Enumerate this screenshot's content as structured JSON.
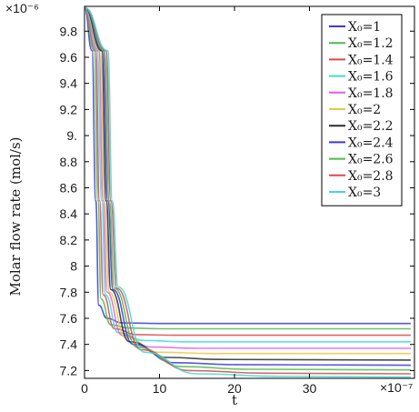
{
  "chart_data": {
    "type": "line",
    "xlabel": "t",
    "ylabel": "Molar flow rate (mol/s)",
    "x_multiplier": "×10⁻⁷",
    "y_multiplier": "×10⁻⁶",
    "xlim": [
      0,
      44
    ],
    "ylim": [
      7.14,
      9.99
    ],
    "x_ticks": [
      0,
      10,
      20,
      30
    ],
    "x_tick_labels": [
      "0",
      "10",
      "20",
      "30"
    ],
    "y_ticks": [
      7.2,
      7.4,
      7.6,
      7.8,
      8.0,
      8.2,
      8.4,
      8.6,
      8.8,
      9.0,
      9.2,
      9.4,
      9.6,
      9.8
    ],
    "y_tick_labels": [
      "7.2",
      "7.4",
      "7.6",
      "7.8",
      "8",
      "8.2",
      "8.4",
      "8.6",
      "8.8",
      "9.",
      "9.2",
      "9.4",
      "9.6",
      "9.8"
    ],
    "grid": false,
    "legend_position": "top-right",
    "series": [
      {
        "name": "X₀=1",
        "color": "#3a3ad8",
        "values": [
          [
            0,
            9.98
          ],
          [
            1,
            9.65
          ],
          [
            1.5,
            8.5
          ],
          [
            1.9,
            7.7
          ],
          [
            3,
            7.6
          ],
          [
            5,
            7.565
          ],
          [
            10,
            7.56
          ],
          [
            43.5,
            7.56
          ]
        ]
      },
      {
        "name": "X₀=1.2",
        "color": "#50b850",
        "values": [
          [
            0,
            9.98
          ],
          [
            1.3,
            9.65
          ],
          [
            1.8,
            8.5
          ],
          [
            2.2,
            7.75
          ],
          [
            3.5,
            7.55
          ],
          [
            6,
            7.525
          ],
          [
            10,
            7.52
          ],
          [
            43.5,
            7.52
          ]
        ]
      },
      {
        "name": "X₀=1.4",
        "color": "#d84a4a",
        "values": [
          [
            0,
            9.98
          ],
          [
            1.5,
            9.65
          ],
          [
            2.0,
            8.5
          ],
          [
            2.5,
            7.78
          ],
          [
            4,
            7.52
          ],
          [
            7,
            7.475
          ],
          [
            12,
            7.47
          ],
          [
            43.5,
            7.47
          ]
        ]
      },
      {
        "name": "X₀=1.6",
        "color": "#3fd9d9",
        "values": [
          [
            0,
            9.98
          ],
          [
            1.7,
            9.65
          ],
          [
            2.3,
            8.5
          ],
          [
            2.8,
            7.78
          ],
          [
            4.5,
            7.49
          ],
          [
            8,
            7.43
          ],
          [
            13,
            7.42
          ],
          [
            43.5,
            7.42
          ]
        ]
      },
      {
        "name": "X₀=1.8",
        "color": "#e060e0",
        "values": [
          [
            0,
            9.98
          ],
          [
            1.9,
            9.65
          ],
          [
            2.5,
            8.5
          ],
          [
            3.0,
            7.8
          ],
          [
            5,
            7.47
          ],
          [
            9,
            7.38
          ],
          [
            15,
            7.37
          ],
          [
            43.5,
            7.37
          ]
        ]
      },
      {
        "name": "X₀=2",
        "color": "#e8c840",
        "values": [
          [
            0,
            9.98
          ],
          [
            2.1,
            9.65
          ],
          [
            2.7,
            8.5
          ],
          [
            3.3,
            7.8
          ],
          [
            5.5,
            7.45
          ],
          [
            10,
            7.34
          ],
          [
            17,
            7.33
          ],
          [
            43.5,
            7.33
          ]
        ]
      },
      {
        "name": "X₀=2.2",
        "color": "#2a2a2a",
        "values": [
          [
            0,
            9.98
          ],
          [
            2.3,
            9.65
          ],
          [
            2.9,
            8.5
          ],
          [
            3.5,
            7.82
          ],
          [
            6,
            7.42
          ],
          [
            11,
            7.3
          ],
          [
            18,
            7.285
          ],
          [
            43.5,
            7.28
          ]
        ]
      },
      {
        "name": "X₀=2.4",
        "color": "#3a3ad8",
        "values": [
          [
            0,
            9.98
          ],
          [
            2.5,
            9.65
          ],
          [
            3.1,
            8.5
          ],
          [
            3.8,
            7.82
          ],
          [
            6.5,
            7.4
          ],
          [
            12,
            7.26
          ],
          [
            20,
            7.245
          ],
          [
            43.5,
            7.24
          ]
        ]
      },
      {
        "name": "X₀=2.6",
        "color": "#50b850",
        "values": [
          [
            0,
            9.98
          ],
          [
            2.7,
            9.65
          ],
          [
            3.3,
            8.5
          ],
          [
            4.0,
            7.83
          ],
          [
            7,
            7.38
          ],
          [
            13,
            7.23
          ],
          [
            22,
            7.21
          ],
          [
            43.5,
            7.205
          ]
        ]
      },
      {
        "name": "X₀=2.8",
        "color": "#d84a4a",
        "values": [
          [
            0,
            9.98
          ],
          [
            2.9,
            9.65
          ],
          [
            3.5,
            8.5
          ],
          [
            4.3,
            7.83
          ],
          [
            7.5,
            7.36
          ],
          [
            14,
            7.2
          ],
          [
            24,
            7.18
          ],
          [
            43.5,
            7.175
          ]
        ]
      },
      {
        "name": "X₀=3",
        "color": "#3fd9d9",
        "values": [
          [
            0,
            9.98
          ],
          [
            3.1,
            9.65
          ],
          [
            3.7,
            8.5
          ],
          [
            4.5,
            7.84
          ],
          [
            8,
            7.34
          ],
          [
            15,
            7.175
          ],
          [
            26,
            7.155
          ],
          [
            43.5,
            7.15
          ]
        ]
      }
    ]
  }
}
